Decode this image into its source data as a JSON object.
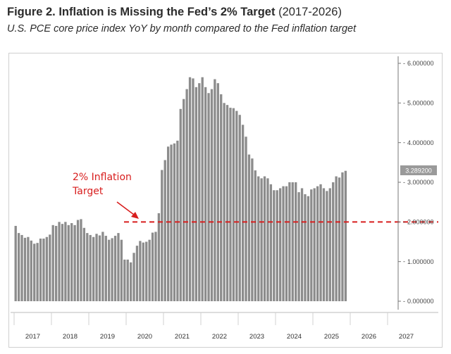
{
  "title": {
    "bold": "Figure 2. Inflation is Missing the Fed’s 2% Target",
    "range": "(2017-2026)"
  },
  "subtitle": "U.S. PCE core price index YoY by month compared to the Fed inflation target",
  "chart_data": {
    "type": "bar",
    "title": "Figure 2. Inflation is Missing the Fed’s 2% Target (2017-2026)",
    "subtitle": "U.S. PCE core price index YoY by month compared to the Fed inflation target",
    "xlabel": "",
    "ylabel": "",
    "ylim": [
      0,
      6
    ],
    "y_axis_position": "right",
    "y_ticks": [
      "0.000000",
      "1.000000",
      "2.000000",
      "3.000000",
      "4.000000",
      "5.000000",
      "6.000000"
    ],
    "x_ticks": [
      "2017",
      "2018",
      "2019",
      "2020",
      "2021",
      "2022",
      "2023",
      "2024",
      "2025",
      "2026",
      "2027"
    ],
    "start": "2017-01",
    "frequency": "monthly",
    "series": [
      {
        "name": "",
        "color": "#8c8c8c",
        "values": [
          1.9,
          1.72,
          1.67,
          1.6,
          1.62,
          1.53,
          1.45,
          1.47,
          1.58,
          1.58,
          1.62,
          1.68,
          1.92,
          1.9,
          2.0,
          1.95,
          2.0,
          1.92,
          1.97,
          1.92,
          2.05,
          2.07,
          1.85,
          1.72,
          1.67,
          1.62,
          1.7,
          1.66,
          1.75,
          1.65,
          1.55,
          1.59,
          1.65,
          1.72,
          1.55,
          1.05,
          1.05,
          0.98,
          1.22,
          1.4,
          1.52,
          1.48,
          1.5,
          1.55,
          1.73,
          1.75,
          2.22,
          3.31,
          3.56,
          3.9,
          3.95,
          3.98,
          4.05,
          4.85,
          5.1,
          5.35,
          5.65,
          5.62,
          5.4,
          5.5,
          5.65,
          5.4,
          5.25,
          5.35,
          5.6,
          5.5,
          5.22,
          5.0,
          4.95,
          4.88,
          4.87,
          4.8,
          4.7,
          4.45,
          4.15,
          3.7,
          3.6,
          3.3,
          3.15,
          3.1,
          3.15,
          3.1,
          2.95,
          2.8,
          2.8,
          2.85,
          2.9,
          2.9,
          3.0,
          3.0,
          3.0,
          2.75,
          2.85,
          2.7,
          2.65,
          2.82,
          2.85,
          2.9,
          2.95,
          2.85,
          2.78,
          2.85,
          3.0,
          3.15,
          3.12,
          3.25,
          3.289
        ]
      }
    ],
    "reference_line": {
      "value": 2.0,
      "style": "dashed",
      "color": "#d81e1e"
    },
    "annotation": {
      "lines": [
        "2% Inflation",
        "Target"
      ],
      "color": "#d81e1e"
    },
    "last_value_label": "3.289200",
    "grid": false,
    "legend": "none"
  }
}
